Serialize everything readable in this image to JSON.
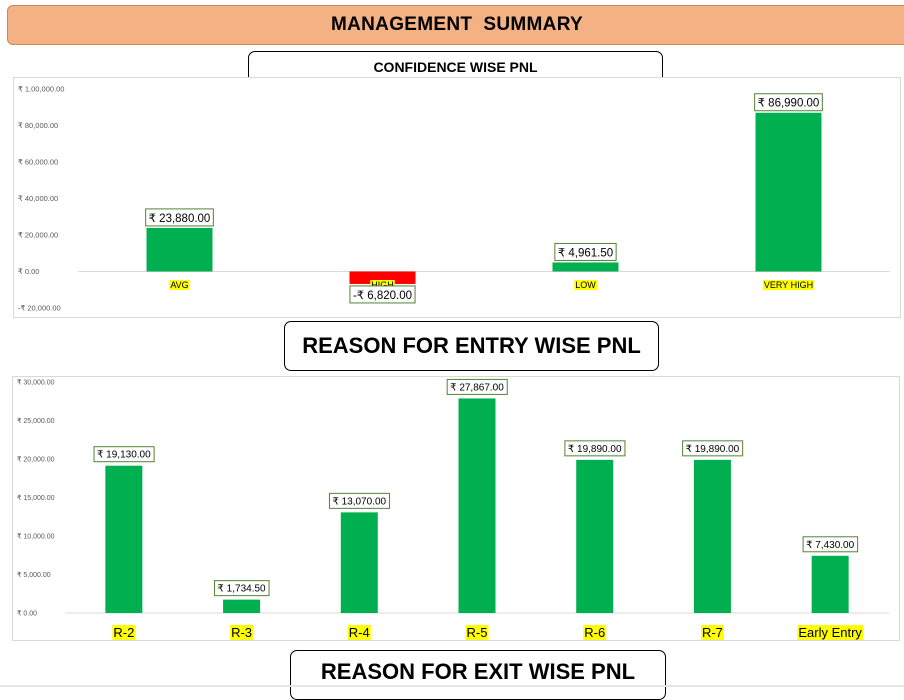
{
  "header": {
    "title": "MANAGEMENT  SUMMARY"
  },
  "colors": {
    "positive": "#00b050",
    "negative": "#ff0000",
    "label_highlight": "#ffff00",
    "banner": "#f4b183"
  },
  "sections": {
    "confidence_title": "CONFIDENCE WISE PNL",
    "entry_title": "REASON FOR ENTRY WISE PNL",
    "exit_title": "REASON FOR EXIT WISE PNL"
  },
  "chart_data": [
    {
      "type": "bar",
      "title": "CONFIDENCE WISE PNL",
      "categories": [
        "AVG",
        "HIGH",
        "LOW",
        "VERY HIGH"
      ],
      "values": [
        23880,
        -6820,
        4961.5,
        86990
      ],
      "data_labels": [
        "₹ 23,880.00",
        "-₹ 6,820.00",
        "₹ 4,961.50",
        "₹ 86,990.00"
      ],
      "ylim": [
        -20000,
        100000
      ],
      "yticks": [
        -20000,
        0,
        20000,
        40000,
        60000,
        80000,
        100000
      ],
      "ytick_labels": [
        "-₹ 20,000.00",
        "₹ 0.00",
        "₹ 20,000.00",
        "₹ 40,000.00",
        "₹ 60,000.00",
        "₹ 80,000.00",
        "₹ 1,00,000.00"
      ],
      "grid": false
    },
    {
      "type": "bar",
      "title": "REASON FOR ENTRY WISE PNL",
      "categories": [
        "R-2",
        "R-3",
        "R-4",
        "R-5",
        "R-6",
        "R-7",
        "Early Entry"
      ],
      "values": [
        19130,
        1734.5,
        13070,
        27867,
        19890,
        19890,
        7430
      ],
      "data_labels": [
        "₹ 19,130.00",
        "₹ 1,734.50",
        "₹ 13,070.00",
        "₹ 27,867.00",
        "₹ 19,890.00",
        "₹ 19,890.00",
        "₹ 7,430.00"
      ],
      "ylim": [
        0,
        30000
      ],
      "yticks": [
        0,
        5000,
        10000,
        15000,
        20000,
        25000,
        30000
      ],
      "ytick_labels": [
        "₹ 0.00",
        "₹ 5,000.00",
        "₹ 10,000.00",
        "₹ 15,000.00",
        "₹ 20,000.00",
        "₹ 25,000.00",
        "₹ 30,000.00"
      ],
      "grid": false
    }
  ]
}
